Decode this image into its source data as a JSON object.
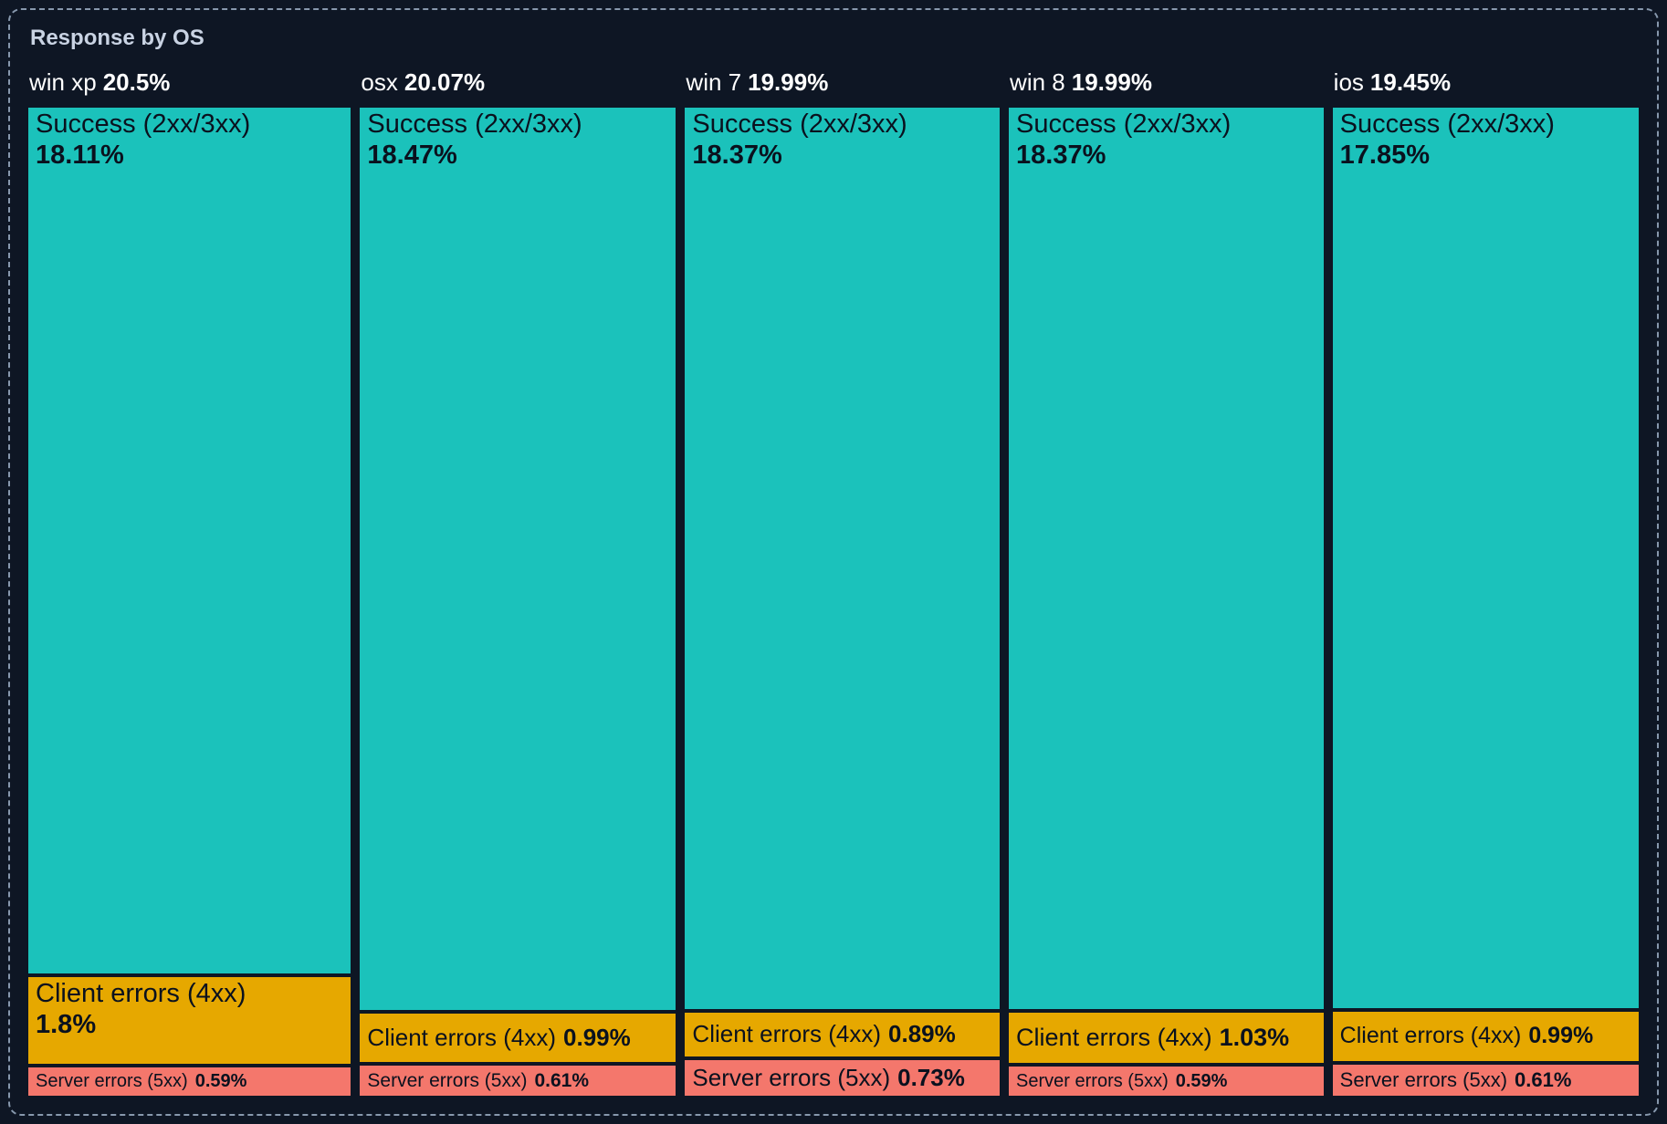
{
  "panel": {
    "title": "Response by OS"
  },
  "colors": {
    "background": "#0e1624",
    "panel_border": "#8798ad",
    "title_text": "#c9d3e3",
    "header_text": "#ffffff",
    "segment_text": "#0a111e",
    "success": "#1bc2bb",
    "client_errors": "#e6a800",
    "server_errors": "#f4776c"
  },
  "chart_data": {
    "type": "treemap",
    "title": "Response by OS",
    "layout": "columns split horizontally by OS share, each column split vertically by response class share; all values are percent of grand total",
    "legend": "none",
    "groups": [
      {
        "name": "win xp",
        "value_pct": 20.5,
        "value_label": "20.5%",
        "children": [
          {
            "name": "Success (2xx/3xx)",
            "category": "success",
            "value_pct": 18.11,
            "value_label": "18.11%"
          },
          {
            "name": "Client errors (4xx)",
            "category": "client_errors",
            "value_pct": 1.8,
            "value_label": "1.8%"
          },
          {
            "name": "Server errors (5xx)",
            "category": "server_errors",
            "value_pct": 0.59,
            "value_label": "0.59%"
          }
        ]
      },
      {
        "name": "osx",
        "value_pct": 20.07,
        "value_label": "20.07%",
        "children": [
          {
            "name": "Success (2xx/3xx)",
            "category": "success",
            "value_pct": 18.47,
            "value_label": "18.47%"
          },
          {
            "name": "Client errors (4xx)",
            "category": "client_errors",
            "value_pct": 0.99,
            "value_label": "0.99%"
          },
          {
            "name": "Server errors (5xx)",
            "category": "server_errors",
            "value_pct": 0.61,
            "value_label": "0.61%"
          }
        ]
      },
      {
        "name": "win 7",
        "value_pct": 19.99,
        "value_label": "19.99%",
        "children": [
          {
            "name": "Success (2xx/3xx)",
            "category": "success",
            "value_pct": 18.37,
            "value_label": "18.37%"
          },
          {
            "name": "Client errors (4xx)",
            "category": "client_errors",
            "value_pct": 0.89,
            "value_label": "0.89%"
          },
          {
            "name": "Server errors (5xx)",
            "category": "server_errors",
            "value_pct": 0.73,
            "value_label": "0.73%"
          }
        ]
      },
      {
        "name": "win 8",
        "value_pct": 19.99,
        "value_label": "19.99%",
        "children": [
          {
            "name": "Success (2xx/3xx)",
            "category": "success",
            "value_pct": 18.37,
            "value_label": "18.37%"
          },
          {
            "name": "Client errors (4xx)",
            "category": "client_errors",
            "value_pct": 1.03,
            "value_label": "1.03%"
          },
          {
            "name": "Server errors (5xx)",
            "category": "server_errors",
            "value_pct": 0.59,
            "value_label": "0.59%"
          }
        ]
      },
      {
        "name": "ios",
        "value_pct": 19.45,
        "value_label": "19.45%",
        "children": [
          {
            "name": "Success (2xx/3xx)",
            "category": "success",
            "value_pct": 17.85,
            "value_label": "17.85%"
          },
          {
            "name": "Client errors (4xx)",
            "category": "client_errors",
            "value_pct": 0.99,
            "value_label": "0.99%"
          },
          {
            "name": "Server errors (5xx)",
            "category": "server_errors",
            "value_pct": 0.61,
            "value_label": "0.61%"
          }
        ]
      }
    ]
  }
}
